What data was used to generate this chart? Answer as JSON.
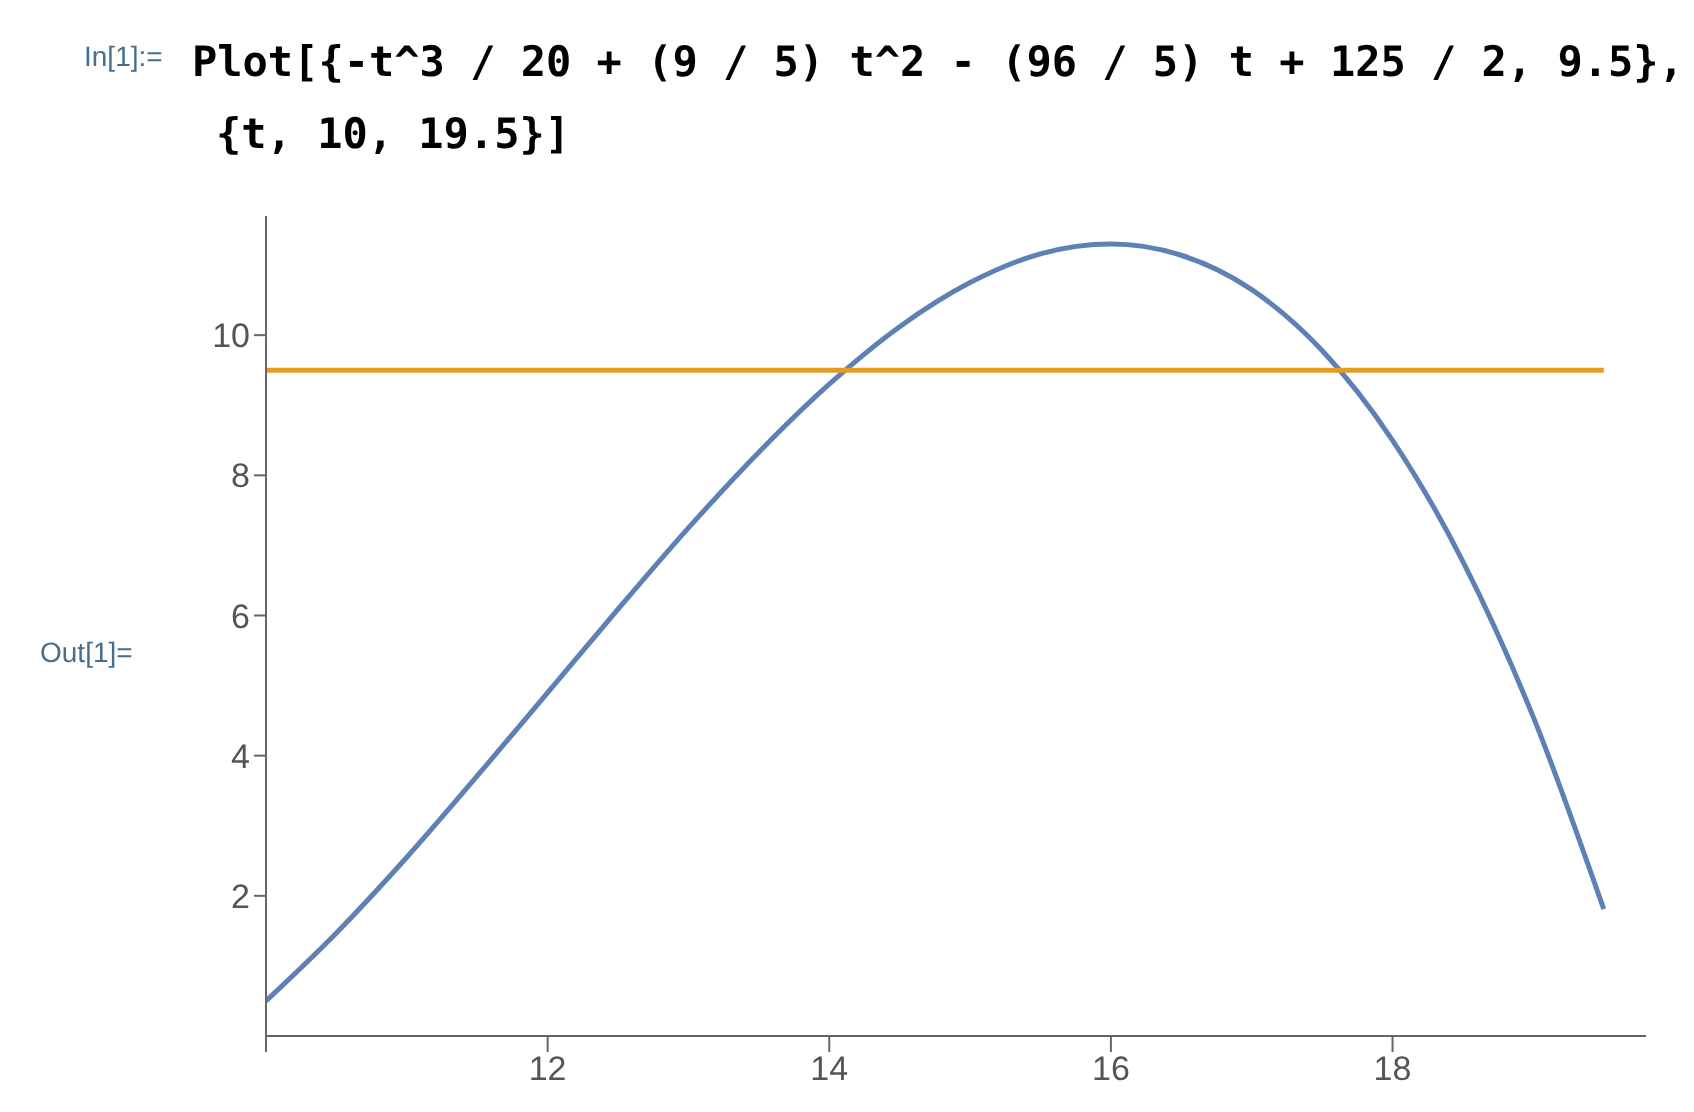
{
  "chart_data": {
    "type": "line",
    "annotations": [
      "In[1]:=",
      "Plot[{-t^3 / 20 + (9 / 5) t^2 - (96 / 5) t + 125 / 2, 9.5},",
      "{t, 10, 19.5}]",
      "Out[1]="
    ],
    "x": [
      10,
      10.5,
      11,
      11.5,
      12,
      12.5,
      13,
      13.5,
      14,
      14.5,
      15,
      15.5,
      16,
      16.5,
      17,
      17.5,
      18,
      18.5,
      19,
      19.5
    ],
    "series": [
      {
        "color": "#5e81b5",
        "values": [
          0.5,
          1.47,
          2.55,
          3.71,
          4.9,
          6.09,
          7.25,
          8.33,
          9.3,
          10.12,
          10.75,
          11.16,
          11.3,
          11.14,
          10.65,
          9.78,
          8.5,
          6.77,
          4.55,
          1.81
        ]
      },
      {
        "color": "#e19c24",
        "values": [
          9.5,
          9.5,
          9.5,
          9.5,
          9.5,
          9.5,
          9.5,
          9.5,
          9.5,
          9.5,
          9.5,
          9.5,
          9.5,
          9.5,
          9.5,
          9.5,
          9.5,
          9.5,
          9.5,
          9.5
        ]
      }
    ],
    "xlim": [
      10,
      19.8
    ],
    "xticks": [
      {
        "value": 10,
        "label": null
      },
      12,
      14,
      16,
      18
    ],
    "ylim": [
      0,
      11.7
    ],
    "yticks": [
      2,
      4,
      6,
      8,
      10
    ],
    "grid": false,
    "legend": false,
    "marker": "none",
    "line_style": "solid"
  }
}
